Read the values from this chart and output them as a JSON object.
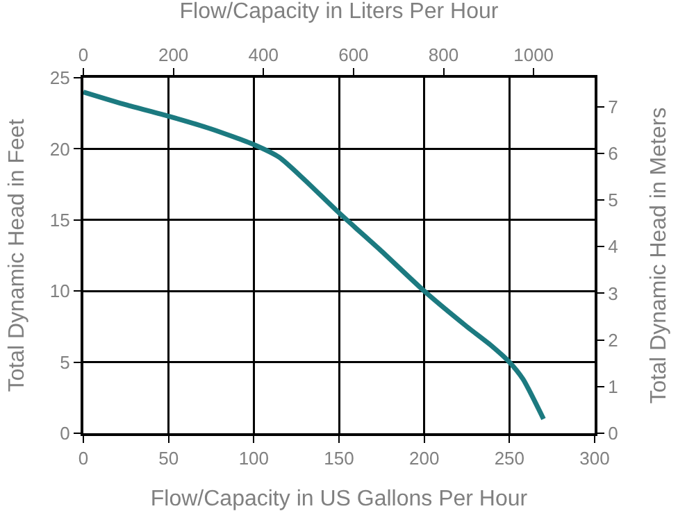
{
  "chart_data": {
    "type": "line",
    "xlabel": "Flow/Capacity in US Gallons Per Hour",
    "x2label": "Flow/Capacity in Liters Per Hour",
    "ylabel": "Total Dynamic Head in Feet",
    "y2label": "Total Dynamic Head in Meters",
    "x": [
      0,
      25,
      50,
      75,
      100,
      115,
      130,
      150,
      175,
      200,
      225,
      240,
      250,
      258,
      270
    ],
    "series": [
      {
        "color": "#1c7a80",
        "values": [
          24,
          23.1,
          22.3,
          21.4,
          20.3,
          19.4,
          17.8,
          15.5,
          12.8,
          10,
          7.5,
          6.1,
          5,
          3.8,
          1
        ]
      }
    ],
    "xlim": [
      0,
      300
    ],
    "xticks": [
      0,
      50,
      100,
      150,
      200,
      250,
      300
    ],
    "x2lim": [
      0,
      1135.6
    ],
    "x2ticks": [
      0,
      200,
      400,
      600,
      800,
      1000
    ],
    "ylim": [
      0,
      25
    ],
    "yticks": [
      0,
      5,
      10,
      15,
      20,
      25
    ],
    "y2lim": [
      0,
      7.62
    ],
    "y2ticks": [
      0,
      1,
      2,
      3,
      4,
      5,
      6,
      7
    ],
    "grid": true,
    "marker": "none",
    "line_style": "solid"
  }
}
